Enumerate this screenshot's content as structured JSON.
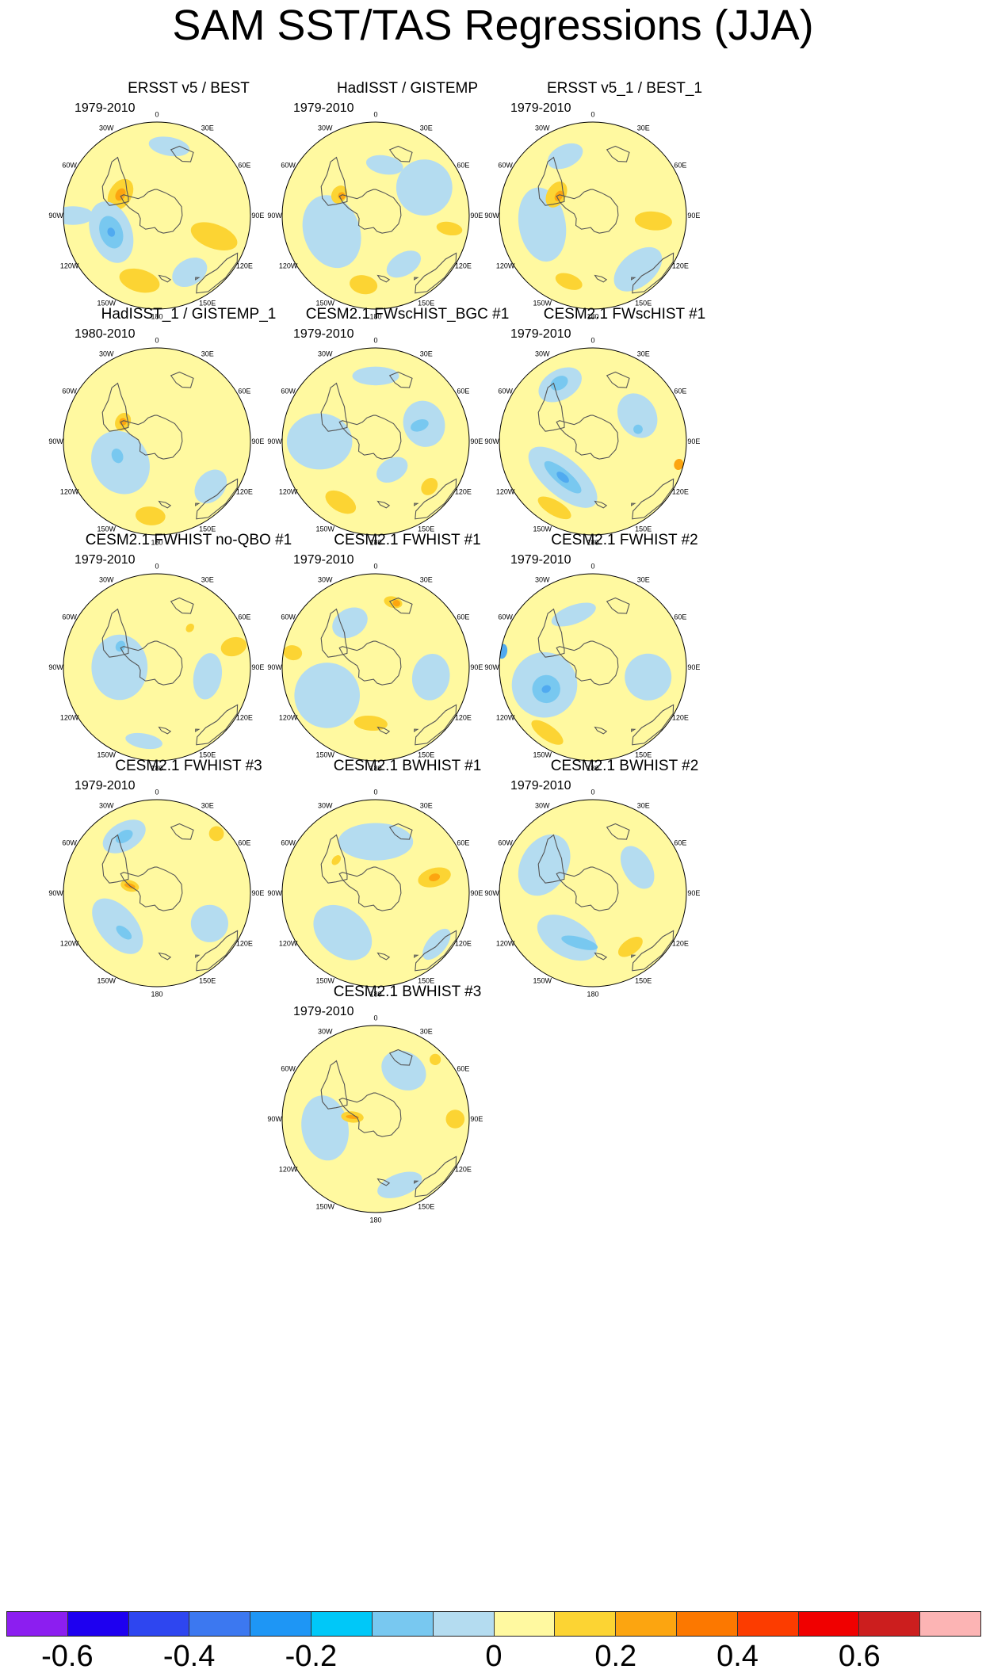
{
  "title": "SAM SST/TAS Regressions (JJA)",
  "lon_labels": [
    "0",
    "30E",
    "60E",
    "90E",
    "120E",
    "150E",
    "180",
    "150W",
    "120W",
    "90W",
    "60W",
    "30W"
  ],
  "panels": [
    {
      "title": "ERSST v5 / BEST",
      "period": "1979-2010",
      "land": "#fff9a0",
      "patches": [
        {
          "c": "#fcd433",
          "lon": 110,
          "r": 0.65,
          "rx": 0.13,
          "ry": 0.26
        },
        {
          "c": "#fcd433",
          "lon": 195,
          "r": 0.72,
          "rx": 0.22,
          "ry": 0.12
        },
        {
          "c": "#fcd433",
          "lon": 300,
          "r": 0.45,
          "rx": 0.18,
          "ry": 0.12
        },
        {
          "c": "#fca510",
          "lon": 300,
          "r": 0.45,
          "rx": 0.07,
          "ry": 0.05
        },
        {
          "c": "#b4dcf0",
          "lon": 250,
          "r": 0.52,
          "rx": 0.34,
          "ry": 0.22
        },
        {
          "c": "#78c8f0",
          "lon": 250,
          "r": 0.52,
          "rx": 0.18,
          "ry": 0.12
        },
        {
          "c": "#50aaf0",
          "lon": 250,
          "r": 0.52,
          "rx": 0.05,
          "ry": 0.04
        },
        {
          "c": "#b4dcf0",
          "lon": 10,
          "r": 0.75,
          "rx": 0.22,
          "ry": 0.1
        },
        {
          "c": "#b4dcf0",
          "lon": 150,
          "r": 0.7,
          "rx": 0.2,
          "ry": 0.14
        },
        {
          "c": "#b4dcf0",
          "lon": 270,
          "r": 0.9,
          "rx": 0.1,
          "ry": 0.22
        }
      ]
    },
    {
      "title": "HadISST / GISTEMP",
      "period": "1979-2010",
      "land": "#fff9a0",
      "patches": [
        {
          "c": "#b4dcf0",
          "lon": 250,
          "r": 0.5,
          "rx": 0.4,
          "ry": 0.3
        },
        {
          "c": "#b4dcf0",
          "lon": 60,
          "r": 0.6,
          "rx": 0.3,
          "ry": 0.3
        },
        {
          "c": "#fcd433",
          "lon": 300,
          "r": 0.45,
          "rx": 0.1,
          "ry": 0.08
        },
        {
          "c": "#fcd433",
          "lon": 190,
          "r": 0.75,
          "rx": 0.15,
          "ry": 0.1
        },
        {
          "c": "#fcd433",
          "lon": 100,
          "r": 0.8,
          "rx": 0.07,
          "ry": 0.14
        },
        {
          "c": "#fca510",
          "lon": 300,
          "r": 0.42,
          "rx": 0.04,
          "ry": 0.04
        },
        {
          "c": "#b4dcf0",
          "lon": 10,
          "r": 0.55,
          "rx": 0.2,
          "ry": 0.1
        },
        {
          "c": "#b4dcf0",
          "lon": 150,
          "r": 0.6,
          "rx": 0.2,
          "ry": 0.12
        }
      ]
    },
    {
      "title": "ERSST v5_1 / BEST_1",
      "period": "1979-2010",
      "land": "#fff9a0",
      "patches": [
        {
          "c": "#b4dcf0",
          "lon": 260,
          "r": 0.55,
          "rx": 0.4,
          "ry": 0.25
        },
        {
          "c": "#b4dcf0",
          "lon": 140,
          "r": 0.75,
          "rx": 0.3,
          "ry": 0.18
        },
        {
          "c": "#b4dcf0",
          "lon": 335,
          "r": 0.7,
          "rx": 0.2,
          "ry": 0.12
        },
        {
          "c": "#fcd433",
          "lon": 95,
          "r": 0.65,
          "rx": 0.1,
          "ry": 0.2
        },
        {
          "c": "#fcd433",
          "lon": 300,
          "r": 0.45,
          "rx": 0.15,
          "ry": 0.1
        },
        {
          "c": "#fca510",
          "lon": 300,
          "r": 0.42,
          "rx": 0.06,
          "ry": 0.04
        },
        {
          "c": "#fcd433",
          "lon": 200,
          "r": 0.75,
          "rx": 0.15,
          "ry": 0.08
        }
      ]
    },
    {
      "title": "HadISST_1 / GISTEMP_1",
      "period": "1980-2010",
      "land": "#fff9a0",
      "patches": [
        {
          "c": "#b4dcf0",
          "lon": 240,
          "r": 0.45,
          "rx": 0.35,
          "ry": 0.3
        },
        {
          "c": "#b4dcf0",
          "lon": 130,
          "r": 0.75,
          "rx": 0.2,
          "ry": 0.15
        },
        {
          "c": "#78c8f0",
          "lon": 250,
          "r": 0.45,
          "rx": 0.08,
          "ry": 0.06
        },
        {
          "c": "#fcd433",
          "lon": 300,
          "r": 0.42,
          "rx": 0.1,
          "ry": 0.08
        },
        {
          "c": "#fca510",
          "lon": 300,
          "r": 0.42,
          "rx": 0.04,
          "ry": 0.04
        },
        {
          "c": "#fcd433",
          "lon": 185,
          "r": 0.8,
          "rx": 0.16,
          "ry": 0.1
        }
      ]
    },
    {
      "title": "CESM2.1 FWscHIST_BGC #1",
      "period": "1979-2010",
      "land": "#fff9a0",
      "patches": [
        {
          "c": "#b4dcf0",
          "lon": 270,
          "r": 0.6,
          "rx": 0.3,
          "ry": 0.35
        },
        {
          "c": "#b4dcf0",
          "lon": 70,
          "r": 0.55,
          "rx": 0.25,
          "ry": 0.22
        },
        {
          "c": "#78c8f0",
          "lon": 70,
          "r": 0.5,
          "rx": 0.06,
          "ry": 0.1
        },
        {
          "c": "#b4dcf0",
          "lon": 0,
          "r": 0.7,
          "rx": 0.25,
          "ry": 0.1
        },
        {
          "c": "#fcd433",
          "lon": 210,
          "r": 0.75,
          "rx": 0.18,
          "ry": 0.1
        },
        {
          "c": "#fcd433",
          "lon": 130,
          "r": 0.75,
          "rx": 0.1,
          "ry": 0.08
        },
        {
          "c": "#b4dcf0",
          "lon": 150,
          "r": 0.35,
          "rx": 0.18,
          "ry": 0.12
        }
      ]
    },
    {
      "title": "CESM2.1 FWscHIST #1",
      "period": "1979-2010",
      "land": "#fff9a0",
      "patches": [
        {
          "c": "#b4dcf0",
          "lon": 330,
          "r": 0.7,
          "rx": 0.25,
          "ry": 0.16
        },
        {
          "c": "#78c8f0",
          "lon": 330,
          "r": 0.72,
          "rx": 0.1,
          "ry": 0.07
        },
        {
          "c": "#b4dcf0",
          "lon": 220,
          "r": 0.5,
          "rx": 0.45,
          "ry": 0.2
        },
        {
          "c": "#78c8f0",
          "lon": 220,
          "r": 0.5,
          "rx": 0.25,
          "ry": 0.08
        },
        {
          "c": "#50aaf0",
          "lon": 220,
          "r": 0.5,
          "rx": 0.08,
          "ry": 0.04
        },
        {
          "c": "#b4dcf0",
          "lon": 60,
          "r": 0.55,
          "rx": 0.25,
          "ry": 0.2
        },
        {
          "c": "#78c8f0",
          "lon": 75,
          "r": 0.5,
          "rx": 0.05,
          "ry": 0.05
        },
        {
          "c": "#fcd433",
          "lon": 210,
          "r": 0.82,
          "rx": 0.2,
          "ry": 0.08
        },
        {
          "c": "#fca510",
          "lon": 105,
          "r": 0.95,
          "rx": 0.06,
          "ry": 0.05
        }
      ]
    },
    {
      "title": "CESM2.1 FWHIST no-QBO #1",
      "period": "1979-2010",
      "land": "#fff9a0",
      "patches": [
        {
          "c": "#b4dcf0",
          "lon": 270,
          "r": 0.4,
          "rx": 0.35,
          "ry": 0.3
        },
        {
          "c": "#b4dcf0",
          "lon": 100,
          "r": 0.55,
          "rx": 0.25,
          "ry": 0.15
        },
        {
          "c": "#78c8f0",
          "lon": 300,
          "r": 0.45,
          "rx": 0.06,
          "ry": 0.05
        },
        {
          "c": "#b4dcf0",
          "lon": 190,
          "r": 0.8,
          "rx": 0.2,
          "ry": 0.08
        },
        {
          "c": "#fcd433",
          "lon": 75,
          "r": 0.85,
          "rx": 0.1,
          "ry": 0.14
        },
        {
          "c": "#fcd433",
          "lon": 40,
          "r": 0.55,
          "rx": 0.04,
          "ry": 0.05
        }
      ]
    },
    {
      "title": "CESM2.1 FWHIST #1",
      "period": "1979-2010",
      "land": "#fff9a0",
      "patches": [
        {
          "c": "#b4dcf0",
          "lon": 240,
          "r": 0.6,
          "rx": 0.35,
          "ry": 0.35
        },
        {
          "c": "#b4dcf0",
          "lon": 100,
          "r": 0.6,
          "rx": 0.25,
          "ry": 0.2
        },
        {
          "c": "#b4dcf0",
          "lon": 330,
          "r": 0.55,
          "rx": 0.2,
          "ry": 0.15
        },
        {
          "c": "#fcd433",
          "lon": 15,
          "r": 0.72,
          "rx": 0.1,
          "ry": 0.06
        },
        {
          "c": "#fca510",
          "lon": 18,
          "r": 0.72,
          "rx": 0.04,
          "ry": 0.035
        },
        {
          "c": "#fcd433",
          "lon": 185,
          "r": 0.6,
          "rx": 0.18,
          "ry": 0.08
        },
        {
          "c": "#fcd433",
          "lon": 280,
          "r": 0.9,
          "rx": 0.08,
          "ry": 0.1
        }
      ]
    },
    {
      "title": "CESM2.1 FWHIST #2",
      "period": "1979-2010",
      "land": "#fff9a0",
      "patches": [
        {
          "c": "#b4dcf0",
          "lon": 250,
          "r": 0.55,
          "rx": 0.35,
          "ry": 0.35
        },
        {
          "c": "#78c8f0",
          "lon": 245,
          "r": 0.55,
          "rx": 0.15,
          "ry": 0.15
        },
        {
          "c": "#50aaf0",
          "lon": 245,
          "r": 0.55,
          "rx": 0.04,
          "ry": 0.05
        },
        {
          "c": "#b4dcf0",
          "lon": 100,
          "r": 0.6,
          "rx": 0.25,
          "ry": 0.25
        },
        {
          "c": "#b4dcf0",
          "lon": 340,
          "r": 0.6,
          "rx": 0.25,
          "ry": 0.1
        },
        {
          "c": "#fcd433",
          "lon": 215,
          "r": 0.85,
          "rx": 0.2,
          "ry": 0.08
        },
        {
          "c": "#50aaf0",
          "lon": 280,
          "r": 0.98,
          "rx": 0.08,
          "ry": 0.05
        }
      ]
    },
    {
      "title": "CESM2.1 FWHIST #3",
      "period": "1979-2010",
      "land": "#fff9a0",
      "patches": [
        {
          "c": "#b4dcf0",
          "lon": 330,
          "r": 0.7,
          "rx": 0.25,
          "ry": 0.15
        },
        {
          "c": "#78c8f0",
          "lon": 330,
          "r": 0.7,
          "rx": 0.1,
          "ry": 0.06
        },
        {
          "c": "#b4dcf0",
          "lon": 230,
          "r": 0.55,
          "rx": 0.35,
          "ry": 0.2
        },
        {
          "c": "#78c8f0",
          "lon": 220,
          "r": 0.55,
          "rx": 0.1,
          "ry": 0.05
        },
        {
          "c": "#b4dcf0",
          "lon": 120,
          "r": 0.65,
          "rx": 0.2,
          "ry": 0.2
        },
        {
          "c": "#fcd433",
          "lon": 285,
          "r": 0.3,
          "rx": 0.06,
          "ry": 0.1
        },
        {
          "c": "#fca510",
          "lon": 285,
          "r": 0.3,
          "rx": 0.025,
          "ry": 0.06
        },
        {
          "c": "#fcd433",
          "lon": 45,
          "r": 0.9,
          "rx": 0.08,
          "ry": 0.08
        }
      ]
    },
    {
      "title": "CESM2.1 BWHIST #1",
      "period": "",
      "land": "#fff9a0",
      "patches": [
        {
          "c": "#b4dcf0",
          "lon": 0,
          "r": 0.55,
          "rx": 0.4,
          "ry": 0.2
        },
        {
          "c": "#b4dcf0",
          "lon": 220,
          "r": 0.55,
          "rx": 0.35,
          "ry": 0.25
        },
        {
          "c": "#b4dcf0",
          "lon": 130,
          "r": 0.85,
          "rx": 0.2,
          "ry": 0.1
        },
        {
          "c": "#fcd433",
          "lon": 75,
          "r": 0.65,
          "rx": 0.1,
          "ry": 0.18
        },
        {
          "c": "#fca510",
          "lon": 75,
          "r": 0.65,
          "rx": 0.04,
          "ry": 0.06
        },
        {
          "c": "#fcd433",
          "lon": 310,
          "r": 0.55,
          "rx": 0.06,
          "ry": 0.04
        }
      ]
    },
    {
      "title": "CESM2.1 BWHIST #2",
      "period": "1979-2010",
      "land": "#fff9a0",
      "patches": [
        {
          "c": "#b4dcf0",
          "lon": 300,
          "r": 0.6,
          "rx": 0.35,
          "ry": 0.25
        },
        {
          "c": "#b4dcf0",
          "lon": 210,
          "r": 0.55,
          "rx": 0.35,
          "ry": 0.2
        },
        {
          "c": "#78c8f0",
          "lon": 195,
          "r": 0.55,
          "rx": 0.2,
          "ry": 0.06
        },
        {
          "c": "#b4dcf0",
          "lon": 60,
          "r": 0.55,
          "rx": 0.25,
          "ry": 0.15
        },
        {
          "c": "#fcd433",
          "lon": 145,
          "r": 0.7,
          "rx": 0.15,
          "ry": 0.08
        }
      ]
    },
    {
      "title": "CESM2.1 BWHIST #3",
      "period": "1979-2010",
      "land": "#fff9a0",
      "patches": [
        {
          "c": "#b4dcf0",
          "lon": 260,
          "r": 0.55,
          "rx": 0.35,
          "ry": 0.25
        },
        {
          "c": "#b4dcf0",
          "lon": 30,
          "r": 0.6,
          "rx": 0.25,
          "ry": 0.2
        },
        {
          "c": "#b4dcf0",
          "lon": 160,
          "r": 0.75,
          "rx": 0.25,
          "ry": 0.12
        },
        {
          "c": "#fcd433",
          "lon": 275,
          "r": 0.25,
          "rx": 0.06,
          "ry": 0.12
        },
        {
          "c": "#fca510",
          "lon": 275,
          "r": 0.25,
          "rx": 0.02,
          "ry": 0.07
        },
        {
          "c": "#fcd433",
          "lon": 90,
          "r": 0.85,
          "rx": 0.1,
          "ry": 0.1
        },
        {
          "c": "#fcd433",
          "lon": 45,
          "r": 0.9,
          "rx": 0.06,
          "ry": 0.06
        }
      ]
    }
  ],
  "colorbar": {
    "colors": [
      "#8c1ef0",
      "#1e00f0",
      "#2e46f0",
      "#3c78f0",
      "#1e96f5",
      "#00c8f8",
      "#78c8f0",
      "#b4dcf0",
      "#fff9a0",
      "#fcd433",
      "#fca510",
      "#fc7800",
      "#fc3c00",
      "#f00000",
      "#cc1e1e",
      "#fcb4b4"
    ],
    "labels": [
      {
        "text": "-0.6",
        "edge": 1
      },
      {
        "text": "-0.4",
        "edge": 3
      },
      {
        "text": "-0.2",
        "edge": 5
      },
      {
        "text": "0",
        "edge": 8
      },
      {
        "text": "0.2",
        "edge": 10
      },
      {
        "text": "0.4",
        "edge": 12
      },
      {
        "text": "0.6",
        "edge": 14
      }
    ]
  }
}
